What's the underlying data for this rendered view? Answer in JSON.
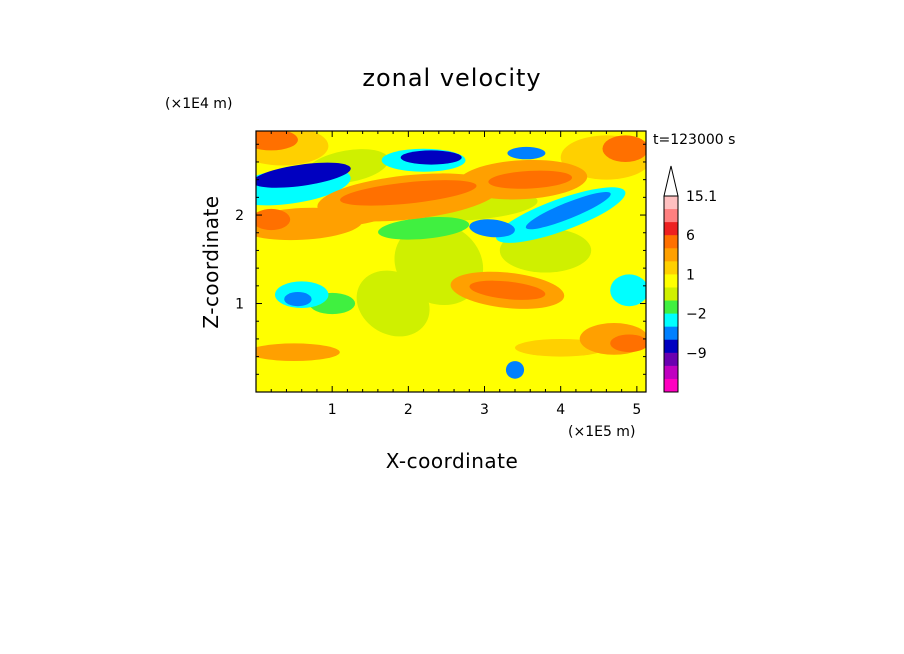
{
  "chart_data": {
    "type": "heatmap",
    "title": "zonal velocity",
    "xlabel": "X-coordinate",
    "ylabel": "Z-coordinate",
    "x_unit": "(×1E5 m)",
    "y_unit": "(×1E4 m)",
    "time_label": "t=123000 s",
    "xlim": [
      0,
      5.12
    ],
    "ylim": [
      0,
      2.95
    ],
    "xticks": [
      "1",
      "2",
      "3",
      "4",
      "5"
    ],
    "yticks": [
      "1",
      "2"
    ],
    "x_tick_values": [
      1,
      2,
      3,
      4,
      5
    ],
    "y_tick_values": [
      1,
      2
    ],
    "grid": false,
    "colorbar": {
      "labels": [
        "15.1",
        "6",
        "1",
        "−2",
        "−9"
      ],
      "label_values": [
        15.1,
        6,
        1,
        -2,
        -9
      ],
      "levels_top_to_bottom": [
        15.1,
        12,
        9,
        6,
        3,
        2,
        1,
        0,
        -1,
        -2,
        -3,
        -6,
        -9,
        -12,
        -15
      ],
      "colors_top_to_bottom": [
        "#ffc0c0",
        "#ff8080",
        "#ee2020",
        "#ff7000",
        "#ffa000",
        "#ffd000",
        "#ffff00",
        "#cff000",
        "#40f040",
        "#00ffff",
        "#0080ff",
        "#0000c0",
        "#6a00b0",
        "#c000c0",
        "#ff00c0"
      ],
      "extend_top": true,
      "band_values_top_to_bottom": [
        13.5,
        10.5,
        7.5,
        4.5,
        2.5,
        1.5,
        0.5,
        0.2,
        -0.5,
        -1.5,
        -2.5,
        -4.5,
        -7.5,
        -10.5,
        -13.5
      ]
    },
    "features": [
      {
        "x": 0.6,
        "z": 2.45,
        "value": -6,
        "rx": 0.65,
        "rz": 0.12,
        "angle": -8
      },
      {
        "x": 0.45,
        "z": 2.33,
        "value": -2.5,
        "rx": 0.8,
        "rz": 0.2,
        "angle": -8
      },
      {
        "x": 2.3,
        "z": 2.65,
        "value": -6,
        "rx": 0.4,
        "rz": 0.08,
        "angle": 0
      },
      {
        "x": 2.2,
        "z": 2.62,
        "value": -2,
        "rx": 0.55,
        "rz": 0.13,
        "angle": 0
      },
      {
        "x": 3.55,
        "z": 2.7,
        "value": -4,
        "rx": 0.25,
        "rz": 0.07,
        "angle": 0
      },
      {
        "x": 4.1,
        "z": 2.05,
        "value": -5,
        "rx": 0.6,
        "rz": 0.09,
        "angle": -22
      },
      {
        "x": 4.0,
        "z": 2.0,
        "value": -2,
        "rx": 0.9,
        "rz": 0.18,
        "angle": -20
      },
      {
        "x": 3.1,
        "z": 1.85,
        "value": -3,
        "rx": 0.3,
        "rz": 0.1,
        "angle": 5
      },
      {
        "x": 2.2,
        "z": 1.85,
        "value": -1.5,
        "rx": 0.6,
        "rz": 0.12,
        "angle": -5
      },
      {
        "x": 0.55,
        "z": 1.05,
        "value": -5,
        "rx": 0.18,
        "rz": 0.08,
        "angle": 0
      },
      {
        "x": 0.6,
        "z": 1.1,
        "value": -2,
        "rx": 0.35,
        "rz": 0.15,
        "angle": 0
      },
      {
        "x": 1.0,
        "z": 1.0,
        "value": -1.5,
        "rx": 0.3,
        "rz": 0.12,
        "angle": 0
      },
      {
        "x": 4.9,
        "z": 1.15,
        "value": -2,
        "rx": 0.25,
        "rz": 0.18,
        "angle": 0
      },
      {
        "x": 3.4,
        "z": 0.25,
        "value": -3,
        "rx": 0.12,
        "rz": 0.1,
        "angle": 0
      },
      {
        "x": 2.0,
        "z": 2.25,
        "value": 4.5,
        "rx": 0.9,
        "rz": 0.12,
        "angle": -6
      },
      {
        "x": 2.0,
        "z": 2.2,
        "value": 2.5,
        "rx": 1.2,
        "rz": 0.25,
        "angle": -6
      },
      {
        "x": 3.6,
        "z": 2.4,
        "value": 5,
        "rx": 0.55,
        "rz": 0.1,
        "angle": -3
      },
      {
        "x": 3.5,
        "z": 2.4,
        "value": 2.5,
        "rx": 0.85,
        "rz": 0.22,
        "angle": -3
      },
      {
        "x": 0.2,
        "z": 2.85,
        "value": 5,
        "rx": 0.35,
        "rz": 0.12,
        "angle": 0
      },
      {
        "x": 0.35,
        "z": 2.78,
        "value": 2,
        "rx": 0.6,
        "rz": 0.22,
        "angle": 0
      },
      {
        "x": 4.85,
        "z": 2.75,
        "value": 5,
        "rx": 0.3,
        "rz": 0.15,
        "angle": 0
      },
      {
        "x": 4.6,
        "z": 2.65,
        "value": 2,
        "rx": 0.6,
        "rz": 0.25,
        "angle": 0
      },
      {
        "x": 0.2,
        "z": 1.95,
        "value": 5,
        "rx": 0.25,
        "rz": 0.12,
        "angle": 0
      },
      {
        "x": 0.6,
        "z": 1.9,
        "value": 2.5,
        "rx": 0.8,
        "rz": 0.18,
        "angle": -3
      },
      {
        "x": 1.2,
        "z": 2.0,
        "value": 2.5,
        "rx": 0.6,
        "rz": 0.12,
        "angle": -5
      },
      {
        "x": 3.3,
        "z": 1.15,
        "value": 4.5,
        "rx": 0.5,
        "rz": 0.1,
        "angle": 6
      },
      {
        "x": 3.3,
        "z": 1.15,
        "value": 2.5,
        "rx": 0.75,
        "rz": 0.2,
        "angle": 6
      },
      {
        "x": 4.9,
        "z": 0.55,
        "value": 4.5,
        "rx": 0.25,
        "rz": 0.1,
        "angle": 0
      },
      {
        "x": 4.7,
        "z": 0.6,
        "value": 2.5,
        "rx": 0.45,
        "rz": 0.18,
        "angle": 0
      },
      {
        "x": 0.5,
        "z": 0.45,
        "value": 2.5,
        "rx": 0.6,
        "rz": 0.1,
        "angle": 0
      },
      {
        "x": 4.0,
        "z": 0.5,
        "value": 2,
        "rx": 0.6,
        "rz": 0.1,
        "angle": 0
      },
      {
        "x": 2.4,
        "z": 1.45,
        "value": -0.6,
        "rx": 0.6,
        "rz": 0.45,
        "angle": 30
      },
      {
        "x": 1.8,
        "z": 1.0,
        "value": -0.6,
        "rx": 0.5,
        "rz": 0.35,
        "angle": 30
      },
      {
        "x": 3.8,
        "z": 1.6,
        "value": -0.6,
        "rx": 0.6,
        "rz": 0.25,
        "angle": 0
      },
      {
        "x": 1.2,
        "z": 2.55,
        "value": -0.6,
        "rx": 0.55,
        "rz": 0.18,
        "angle": -10
      },
      {
        "x": 2.9,
        "z": 2.1,
        "value": -0.6,
        "rx": 0.8,
        "rz": 0.15,
        "angle": -5
      },
      {
        "x": 0.4,
        "z": 0.05,
        "value": 0.5,
        "rx": 1.0,
        "rz": 0.08,
        "angle": 0
      }
    ]
  },
  "colors": {
    "background": "#ffffff",
    "frame": "#000000",
    "base_field": "#ffff00"
  }
}
